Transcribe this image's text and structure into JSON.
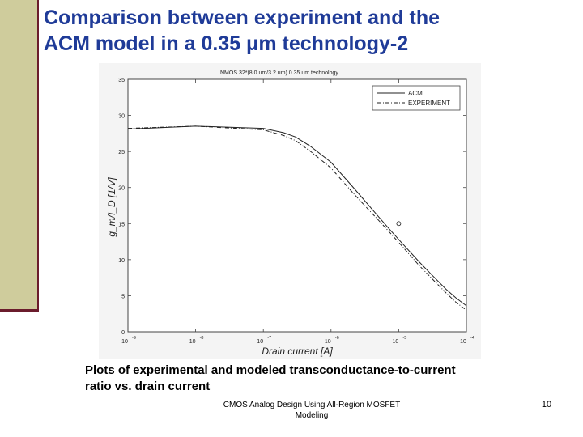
{
  "slide": {
    "title_line1": "Comparison between experiment and the",
    "title_line2": "ACM model in a 0.35 μm technology-2",
    "caption_line1": "Plots of experimental and modeled transconductance-to-current",
    "caption_line2": "ratio vs. drain current",
    "footer_line1": "CMOS Analog Design Using All-Region MOSFET",
    "footer_line2": "Modeling",
    "page_number": "10"
  },
  "colors": {
    "title": "#1f3b98",
    "side_bar": "#cfcc9c",
    "side_rule": "#6b1c2c"
  },
  "chart_data": {
    "type": "line",
    "title": "NMOS   32*(8.0 um/3.2 um)     0.35 um technology",
    "xlabel": "Drain current [A]",
    "ylabel": "g_m/I_D  [1/V]",
    "x_scale": "log",
    "xlim": [
      1e-09,
      0.0001
    ],
    "ylim": [
      0,
      35
    ],
    "x_ticks": [
      {
        "value": 1e-09,
        "base": "10",
        "exp": "-9"
      },
      {
        "value": 1e-08,
        "base": "10",
        "exp": "-8"
      },
      {
        "value": 1e-07,
        "base": "10",
        "exp": "-7"
      },
      {
        "value": 1e-06,
        "base": "10",
        "exp": "-6"
      },
      {
        "value": 1e-05,
        "base": "10",
        "exp": "-5"
      },
      {
        "value": 0.0001,
        "base": "10",
        "exp": "-4"
      }
    ],
    "y_ticks": [
      "0",
      "5",
      "10",
      "15",
      "20",
      "25",
      "30",
      "35"
    ],
    "grid": false,
    "legend_position": "top-right",
    "series": [
      {
        "name": "ACM",
        "style": "solid",
        "x": [
          1e-09,
          1e-08,
          1e-07,
          2e-07,
          3e-07,
          5e-07,
          1e-06,
          2e-06,
          3e-06,
          5e-06,
          7e-06,
          1e-05,
          2e-05,
          3e-05,
          5e-05,
          7e-05,
          0.0001
        ],
        "y": [
          28.1,
          28.5,
          28.2,
          27.6,
          27.0,
          25.7,
          23.5,
          20.3,
          18.4,
          16.0,
          14.4,
          12.8,
          9.7,
          8.0,
          5.9,
          4.7,
          3.6
        ]
      },
      {
        "name": "EXPERIMENT",
        "style": "dash-dot",
        "x": [
          1e-09,
          1e-08,
          1e-07,
          2e-07,
          3e-07,
          5e-07,
          1e-06,
          2e-06,
          3e-06,
          5e-06,
          7e-06,
          1e-05,
          2e-05,
          3e-05,
          5e-05,
          7e-05,
          0.0001
        ],
        "y": [
          28.2,
          28.5,
          28.0,
          27.2,
          26.5,
          25.0,
          22.7,
          19.5,
          17.7,
          15.5,
          14.0,
          12.4,
          9.2,
          7.5,
          5.4,
          4.1,
          3.0
        ]
      }
    ],
    "markers": [
      {
        "x": 1e-05,
        "y": 15.0,
        "shape": "circle"
      }
    ]
  }
}
